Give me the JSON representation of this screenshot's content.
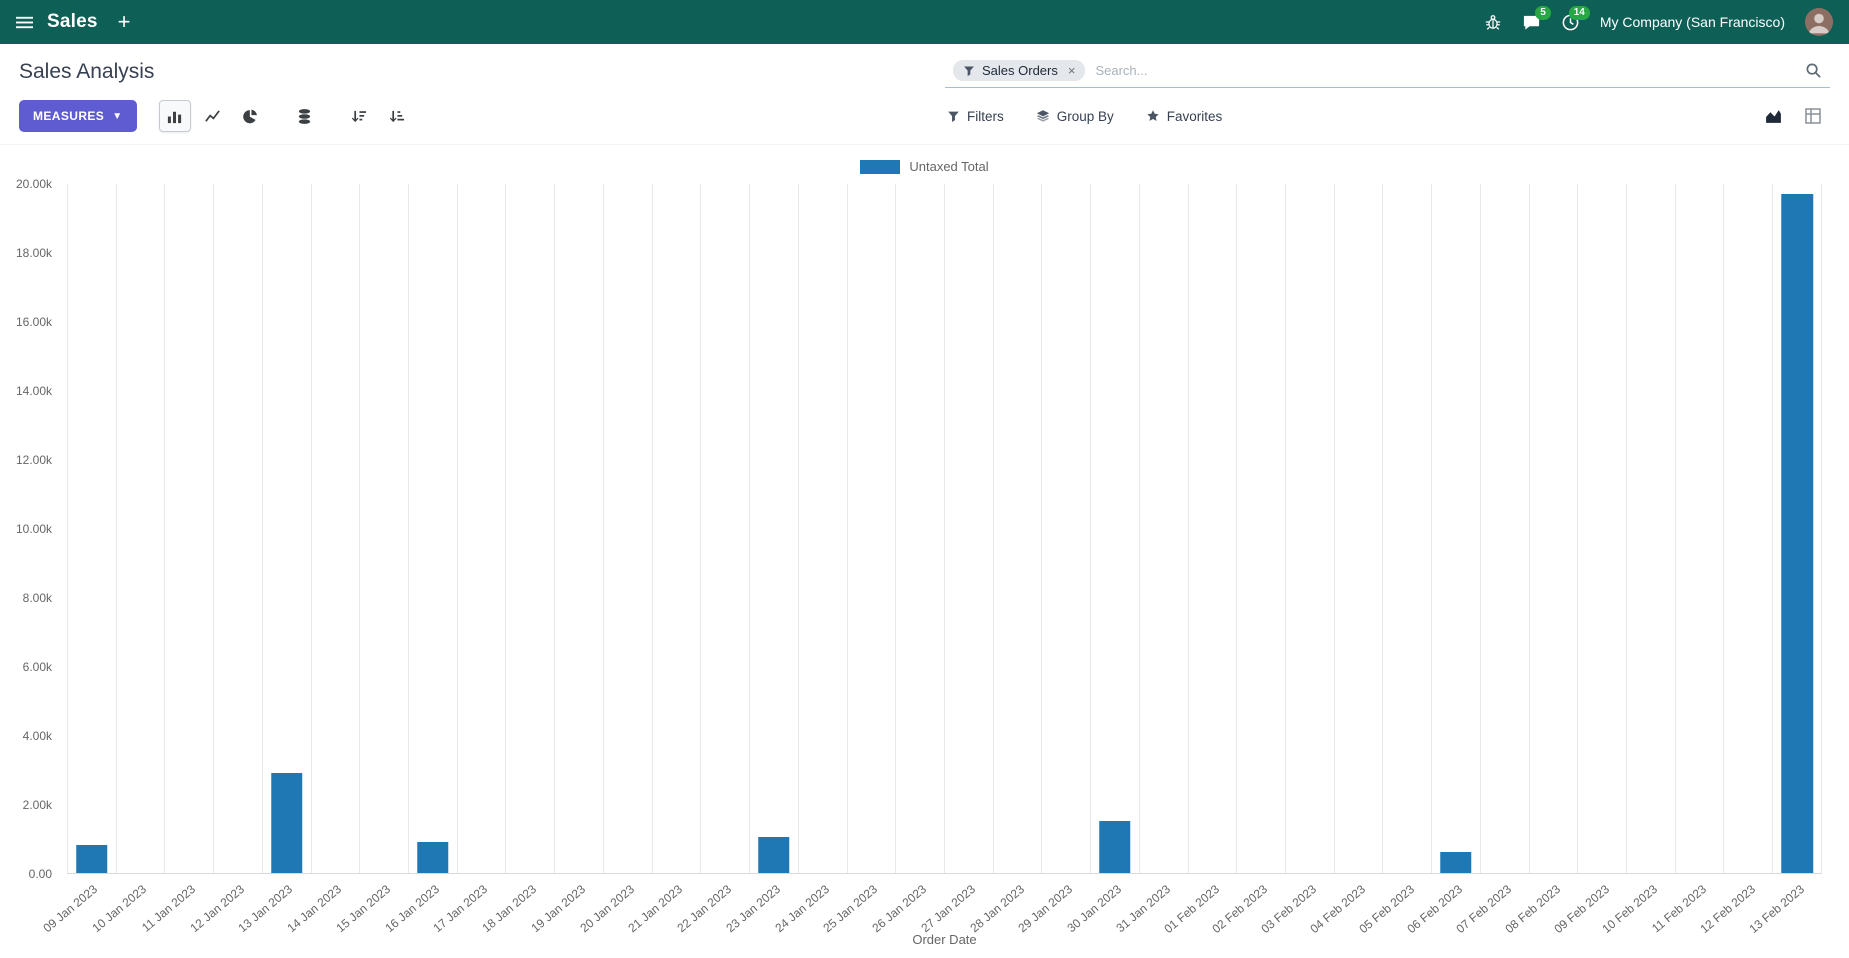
{
  "topbar": {
    "app_name": "Sales",
    "company_name": "My Company (San Francisco)",
    "messages_count": "5",
    "activities_count": "14"
  },
  "control_panel": {
    "title": "Sales Analysis",
    "measures_label": "MEASURES",
    "search": {
      "facet_label": "Sales Orders",
      "placeholder": "Search..."
    },
    "filters_label": "Filters",
    "group_by_label": "Group By",
    "favorites_label": "Favorites"
  },
  "colors": {
    "topbar_bg": "#0e5f56",
    "primary_button": "#5f5bd1",
    "badge_green": "#28a745",
    "bar_blue": "#1f77b4"
  },
  "chart_data": {
    "type": "bar",
    "title": "",
    "xlabel": "Order Date",
    "ylabel": "",
    "ylim": [
      0,
      20000
    ],
    "grid": "vertical",
    "legend_position": "top-center",
    "legend": [
      {
        "label": "Untaxed Total",
        "color": "#1f77b4"
      }
    ],
    "yticks": [
      "0.00",
      "2.00k",
      "4.00k",
      "6.00k",
      "8.00k",
      "10.00k",
      "12.00k",
      "14.00k",
      "16.00k",
      "18.00k",
      "20.00k"
    ],
    "categories": [
      "09 Jan 2023",
      "10 Jan 2023",
      "11 Jan 2023",
      "12 Jan 2023",
      "13 Jan 2023",
      "14 Jan 2023",
      "15 Jan 2023",
      "16 Jan 2023",
      "17 Jan 2023",
      "18 Jan 2023",
      "19 Jan 2023",
      "20 Jan 2023",
      "21 Jan 2023",
      "22 Jan 2023",
      "23 Jan 2023",
      "24 Jan 2023",
      "25 Jan 2023",
      "26 Jan 2023",
      "27 Jan 2023",
      "28 Jan 2023",
      "29 Jan 2023",
      "30 Jan 2023",
      "31 Jan 2023",
      "01 Feb 2023",
      "02 Feb 2023",
      "03 Feb 2023",
      "04 Feb 2023",
      "05 Feb 2023",
      "06 Feb 2023",
      "07 Feb 2023",
      "08 Feb 2023",
      "09 Feb 2023",
      "10 Feb 2023",
      "11 Feb 2023",
      "12 Feb 2023",
      "13 Feb 2023"
    ],
    "values": [
      800,
      0,
      0,
      0,
      2900,
      0,
      0,
      900,
      0,
      0,
      0,
      0,
      0,
      0,
      1050,
      0,
      0,
      0,
      0,
      0,
      0,
      1500,
      0,
      0,
      0,
      0,
      0,
      0,
      620,
      0,
      0,
      0,
      0,
      0,
      0,
      19700
    ]
  }
}
